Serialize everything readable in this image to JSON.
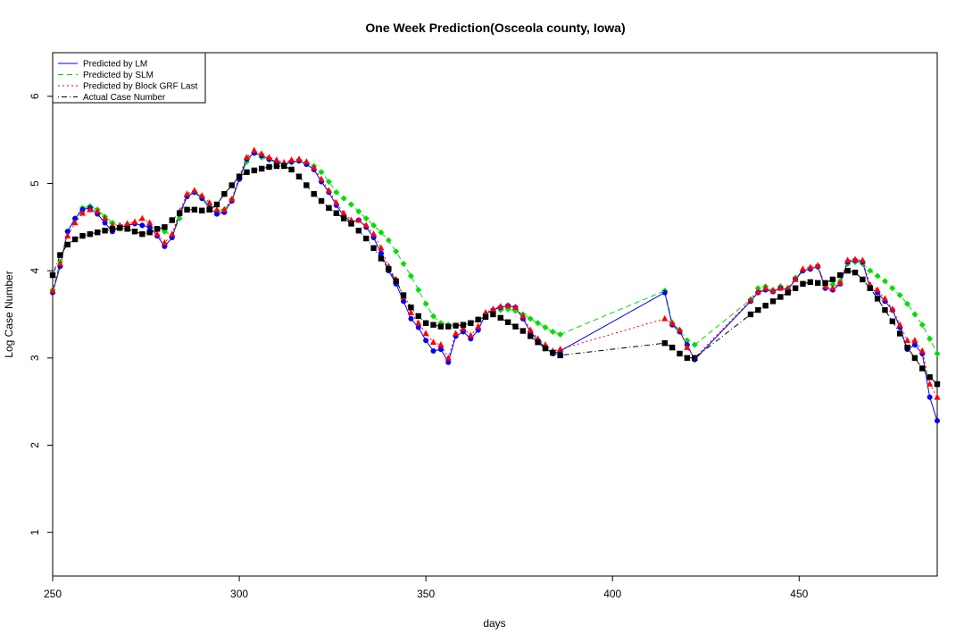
{
  "chart_data": {
    "type": "line",
    "title": "One Week Prediction(Osceola county, Iowa)",
    "xlabel": "days",
    "ylabel": "Log Case Number",
    "xlim": [
      250,
      487
    ],
    "ylim": [
      0.5,
      6.5
    ],
    "x_ticks": [
      250,
      300,
      350,
      400,
      450
    ],
    "y_ticks": [
      1,
      2,
      3,
      4,
      5,
      6
    ],
    "grid": false,
    "legend_position": "top-left",
    "legend": [
      {
        "key": "lm",
        "label": "Predicted by LM",
        "color": "#0000ff",
        "dash": "solid",
        "marker": "circle"
      },
      {
        "key": "slm",
        "label": "Predicted by SLM",
        "color": "#00dd00",
        "dash": "dashed",
        "marker": "diamond"
      },
      {
        "key": "grf",
        "label": "Predicted by Block GRF Last",
        "color": "#ff0000",
        "dash": "dotted",
        "marker": "triangle"
      },
      {
        "key": "actual",
        "label": "Actual Case Number",
        "color": "#000000",
        "dash": "dotdash",
        "marker": "square"
      }
    ],
    "segments": [
      {
        "x": [
          250,
          252,
          254,
          256,
          258,
          260,
          262,
          264,
          266,
          268,
          270,
          272,
          274,
          276,
          278,
          280,
          282,
          284,
          286,
          288,
          290,
          292,
          294,
          296,
          298,
          300,
          302,
          304,
          306,
          308,
          310,
          312,
          314,
          316,
          318,
          320,
          322,
          324,
          326,
          328,
          330,
          332,
          334,
          336,
          338,
          340,
          342,
          344,
          346,
          348,
          350,
          352,
          354,
          356,
          358,
          360,
          362,
          364,
          366,
          368,
          370,
          372,
          374,
          376,
          378,
          380,
          382,
          384,
          386
        ],
        "series": [
          {
            "key": "actual",
            "values": [
              3.95,
              4.18,
              4.3,
              4.36,
              4.4,
              4.42,
              4.44,
              4.46,
              4.48,
              4.49,
              4.48,
              4.45,
              4.42,
              4.44,
              4.48,
              4.5,
              4.58,
              4.66,
              4.7,
              4.7,
              4.69,
              4.7,
              4.76,
              4.88,
              4.98,
              5.08,
              5.13,
              5.15,
              5.17,
              5.19,
              5.2,
              5.2,
              5.16,
              5.08,
              4.98,
              4.88,
              4.8,
              4.72,
              4.66,
              4.6,
              4.54,
              4.46,
              4.37,
              4.26,
              4.14,
              4.02,
              3.88,
              3.72,
              3.58,
              3.48,
              3.4,
              3.38,
              3.36,
              3.36,
              3.37,
              3.38,
              3.4,
              3.44,
              3.47,
              3.5,
              3.46,
              3.41,
              3.36,
              3.31,
              3.25,
              3.18,
              3.11,
              3.06,
              3.03
            ]
          },
          {
            "key": "lm",
            "values": [
              3.75,
              4.05,
              4.45,
              4.6,
              4.7,
              4.72,
              4.65,
              4.55,
              4.45,
              4.5,
              4.52,
              4.54,
              4.52,
              4.5,
              4.4,
              4.28,
              4.38,
              4.65,
              4.85,
              4.9,
              4.83,
              4.72,
              4.65,
              4.67,
              4.8,
              5.05,
              5.28,
              5.35,
              5.32,
              5.28,
              5.25,
              5.22,
              5.25,
              5.26,
              5.22,
              5.16,
              5.02,
              4.9,
              4.75,
              4.63,
              4.56,
              4.58,
              4.5,
              4.38,
              4.2,
              4.0,
              3.85,
              3.65,
              3.45,
              3.35,
              3.2,
              3.08,
              3.1,
              2.95,
              3.25,
              3.3,
              3.22,
              3.32,
              3.5,
              3.55,
              3.58,
              3.6,
              3.58,
              3.45,
              3.3,
              3.2,
              3.12,
              3.05,
              3.08
            ]
          },
          {
            "key": "slm",
            "values": [
              3.78,
              4.1,
              4.45,
              4.6,
              4.72,
              4.74,
              4.7,
              4.62,
              4.55,
              4.5,
              4.52,
              4.54,
              4.52,
              4.5,
              4.48,
              4.45,
              4.4,
              4.6,
              4.86,
              4.9,
              4.85,
              4.74,
              4.68,
              4.7,
              4.82,
              5.05,
              5.25,
              5.35,
              5.3,
              5.27,
              5.24,
              5.22,
              5.24,
              5.26,
              5.24,
              5.2,
              5.13,
              5.02,
              4.9,
              4.83,
              4.76,
              4.68,
              4.6,
              4.52,
              4.44,
              4.35,
              4.22,
              4.08,
              3.94,
              3.78,
              3.62,
              3.48,
              3.4,
              3.38,
              3.37,
              3.38,
              3.4,
              3.44,
              3.48,
              3.52,
              3.55,
              3.56,
              3.54,
              3.5,
              3.45,
              3.4,
              3.35,
              3.3,
              3.27
            ]
          },
          {
            "key": "grf",
            "values": [
              3.77,
              4.08,
              4.4,
              4.55,
              4.66,
              4.7,
              4.68,
              4.6,
              4.52,
              4.52,
              4.54,
              4.56,
              4.6,
              4.55,
              4.42,
              4.32,
              4.42,
              4.68,
              4.88,
              4.92,
              4.86,
              4.78,
              4.7,
              4.7,
              4.82,
              5.08,
              5.3,
              5.38,
              5.34,
              5.3,
              5.27,
              5.24,
              5.27,
              5.28,
              5.25,
              5.18,
              5.05,
              4.92,
              4.78,
              4.66,
              4.58,
              4.58,
              4.52,
              4.42,
              4.26,
              4.05,
              3.9,
              3.7,
              3.52,
              3.4,
              3.28,
              3.18,
              3.15,
              3.0,
              3.28,
              3.34,
              3.26,
              3.36,
              3.52,
              3.56,
              3.59,
              3.6,
              3.58,
              3.48,
              3.32,
              3.22,
              3.15,
              3.08,
              3.1
            ]
          }
        ]
      },
      {
        "x": [
          414,
          416,
          418,
          420,
          422
        ],
        "series": [
          {
            "key": "actual",
            "values": [
              3.17,
              3.12,
              3.05,
              3.0,
              3.0
            ]
          },
          {
            "key": "lm",
            "values": [
              3.75,
              3.38,
              3.3,
              3.15,
              2.98
            ]
          },
          {
            "key": "slm",
            "values": [
              3.77,
              3.4,
              3.32,
              3.2,
              3.15
            ]
          },
          {
            "key": "grf",
            "values": [
              3.45,
              3.4,
              3.32,
              3.12,
              3.0
            ]
          }
        ]
      },
      {
        "x": [
          437,
          439,
          441,
          443,
          445,
          447,
          449,
          451,
          453,
          455,
          457,
          459,
          461,
          463,
          465,
          467,
          469,
          471,
          473,
          475,
          477,
          479,
          481,
          483,
          485,
          487
        ],
        "series": [
          {
            "key": "actual",
            "values": [
              3.5,
              3.55,
              3.6,
              3.65,
              3.7,
              3.75,
              3.8,
              3.85,
              3.87,
              3.86,
              3.86,
              3.9,
              3.95,
              4.0,
              3.98,
              3.9,
              3.8,
              3.68,
              3.55,
              3.42,
              3.28,
              3.12,
              3.0,
              2.88,
              2.78,
              2.7
            ]
          },
          {
            "key": "lm",
            "values": [
              3.65,
              3.75,
              3.78,
              3.76,
              3.8,
              3.78,
              3.9,
              4.0,
              4.02,
              4.05,
              3.8,
              3.78,
              3.85,
              4.1,
              4.12,
              4.1,
              3.8,
              3.75,
              3.65,
              3.55,
              3.35,
              3.1,
              3.15,
              3.05,
              2.55,
              2.28
            ]
          },
          {
            "key": "slm",
            "values": [
              3.67,
              3.8,
              3.82,
              3.78,
              3.82,
              3.8,
              3.92,
              4.0,
              4.02,
              4.04,
              3.85,
              3.84,
              3.88,
              4.08,
              4.1,
              4.08,
              4.0,
              3.94,
              3.88,
              3.8,
              3.72,
              3.62,
              3.5,
              3.38,
              3.22,
              3.05
            ]
          },
          {
            "key": "grf",
            "values": [
              3.66,
              3.76,
              3.8,
              3.77,
              3.8,
              3.8,
              3.9,
              4.02,
              4.04,
              4.06,
              3.82,
              3.8,
              3.86,
              4.12,
              4.13,
              4.12,
              3.84,
              3.78,
              3.68,
              3.56,
              3.38,
              3.2,
              3.2,
              3.08,
              2.7,
              2.55
            ]
          }
        ]
      }
    ]
  }
}
